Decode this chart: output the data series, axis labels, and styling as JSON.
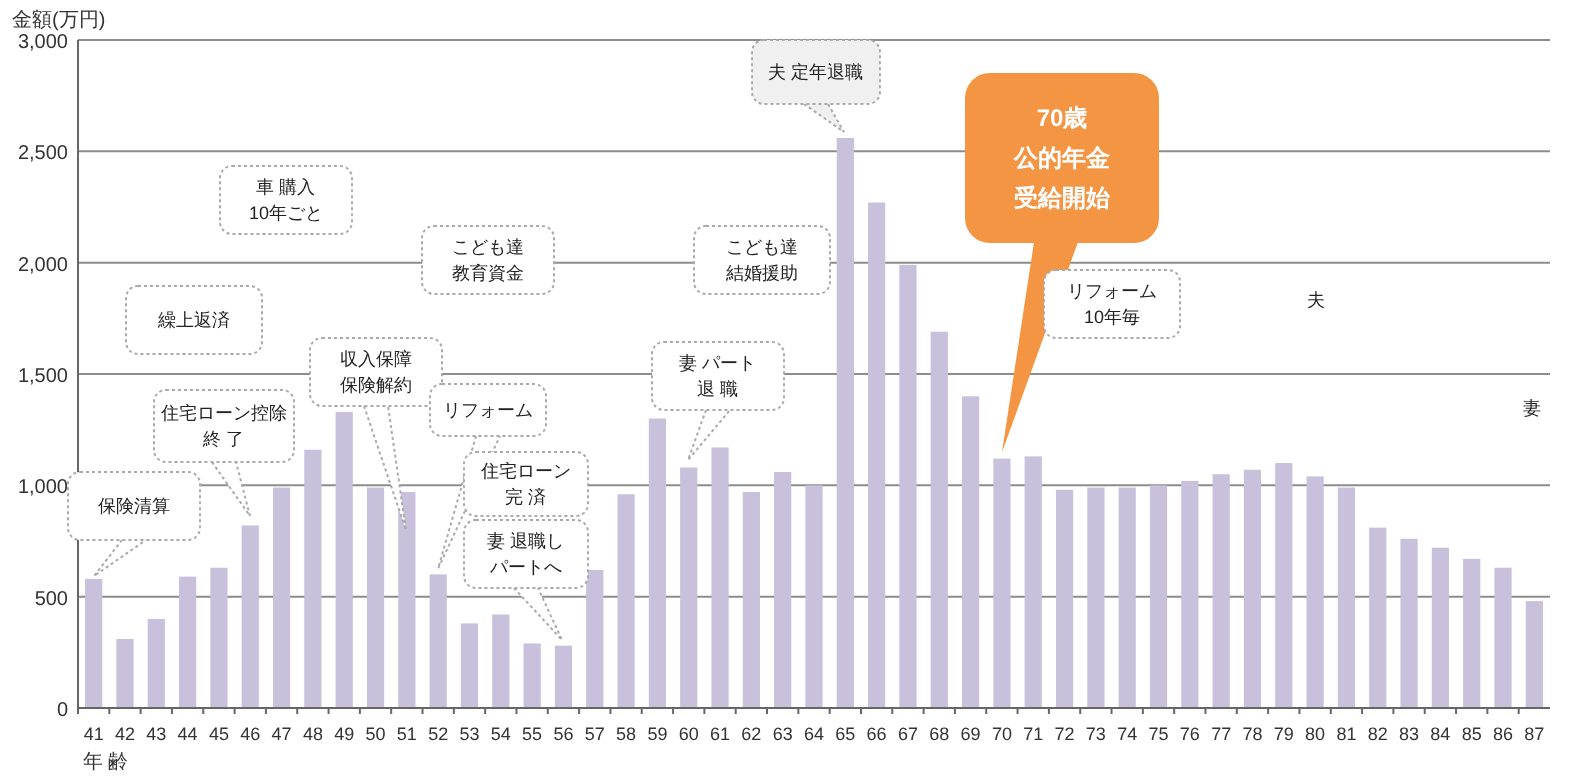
{
  "chart_data": {
    "type": "bar",
    "ylabel": "金額(万円)",
    "xlabel": "年 齢",
    "color": "#c9c0dc",
    "categories": [
      "41",
      "42",
      "43",
      "44",
      "45",
      "46",
      "47",
      "48",
      "49",
      "50",
      "51",
      "52",
      "53",
      "54",
      "55",
      "56",
      "57",
      "58",
      "59",
      "60",
      "61",
      "62",
      "63",
      "64",
      "65",
      "66",
      "67",
      "68",
      "69",
      "70",
      "71",
      "72",
      "73",
      "74",
      "75",
      "76",
      "77",
      "78",
      "79",
      "80",
      "81",
      "82",
      "83",
      "84",
      "85",
      "86",
      "87"
    ],
    "values": [
      580,
      310,
      400,
      590,
      630,
      820,
      990,
      1160,
      1330,
      990,
      970,
      600,
      380,
      420,
      290,
      280,
      620,
      960,
      1300,
      1080,
      1170,
      970,
      1060,
      1000,
      2560,
      2270,
      1990,
      1690,
      1400,
      1120,
      1130,
      980,
      990,
      990,
      1000,
      1020,
      1050,
      1070,
      1100,
      1040,
      990,
      810,
      760,
      720,
      670,
      630,
      480
    ],
    "ylim": [
      0,
      3000
    ],
    "yticks": [
      0,
      {
        "value": 500,
        "label": "500"
      },
      {
        "value": 1000,
        "label": "1,000"
      },
      {
        "value": 1500,
        "label": "1,500"
      },
      {
        "value": 2000,
        "label": "2,000"
      },
      {
        "value": 2500,
        "label": "2,500"
      },
      {
        "value": 3000,
        "label": "3,000"
      }
    ],
    "grid": "y",
    "annotations": [
      "保険清算",
      "住宅ローン控除終 了",
      "繰上返済",
      "車 購入10年ごと",
      "収入保障保険解約",
      "こども達教育資金",
      {
        "text": "リフォーム",
        "x": "52",
        "y": 600
      },
      "住宅ローン完 済",
      "妻 退職しパートへ",
      "妻 パート退 職",
      "こども達結婚援助",
      "夫 定年退職",
      {
        "text": "70歳公的年金受給開始",
        "x": "70",
        "y": 1120
      },
      "リフォーム10年毎",
      "夫",
      "妻"
    ]
  }
}
